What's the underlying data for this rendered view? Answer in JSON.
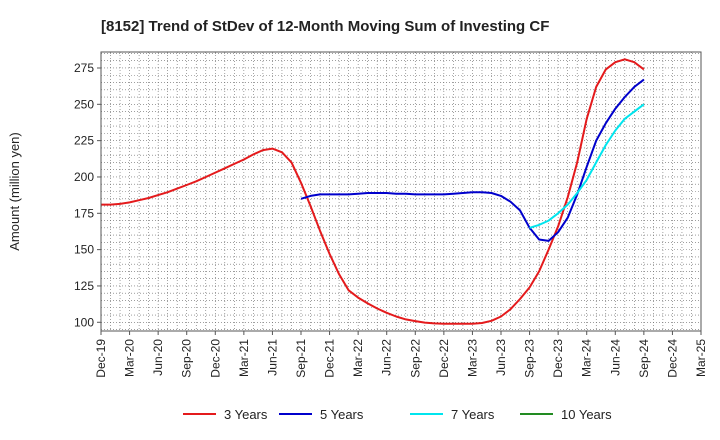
{
  "chart_data": {
    "type": "line",
    "title": "[8152]  Trend of StDev of 12-Month Moving Sum of Investing CF",
    "ylabel": "Amount (million yen)",
    "xlabel": "",
    "ylim": [
      94,
      286
    ],
    "yticks": [
      100,
      125,
      150,
      175,
      200,
      225,
      250,
      275
    ],
    "x_tick_labels": [
      "Dec-19",
      "Mar-20",
      "Jun-20",
      "Sep-20",
      "Dec-20",
      "Mar-21",
      "Jun-21",
      "Sep-21",
      "Dec-21",
      "Mar-22",
      "Jun-22",
      "Sep-22",
      "Dec-22",
      "Mar-23",
      "Jun-23",
      "Sep-23",
      "Dec-23",
      "Mar-24",
      "Jun-24",
      "Sep-24",
      "Dec-24",
      "Mar-25"
    ],
    "grid": true,
    "legend_position": "bottom",
    "series": [
      {
        "name": "3 Years",
        "color": "#e41a1c",
        "x": [
          "Dec-19",
          "Jan-20",
          "Feb-20",
          "Mar-20",
          "Apr-20",
          "May-20",
          "Jun-20",
          "Jul-20",
          "Aug-20",
          "Sep-20",
          "Oct-20",
          "Nov-20",
          "Dec-20",
          "Jan-21",
          "Feb-21",
          "Mar-21",
          "Apr-21",
          "May-21",
          "Jun-21",
          "Jul-21",
          "Aug-21",
          "Sep-21",
          "Oct-21",
          "Nov-21",
          "Dec-21",
          "Jan-22",
          "Feb-22",
          "Mar-22",
          "Apr-22",
          "May-22",
          "Jun-22",
          "Jul-22",
          "Aug-22",
          "Sep-22",
          "Oct-22",
          "Nov-22",
          "Dec-22",
          "Jan-23",
          "Feb-23",
          "Mar-23",
          "Apr-23",
          "May-23",
          "Jun-23",
          "Jul-23",
          "Aug-23",
          "Sep-23",
          "Oct-23",
          "Nov-23",
          "Dec-23",
          "Jan-24",
          "Feb-24",
          "Mar-24",
          "Apr-24",
          "May-24",
          "Jun-24",
          "Jul-24",
          "Aug-24",
          "Sep-24"
        ],
        "values": [
          181,
          181,
          181.5,
          182.5,
          184,
          185.5,
          187.5,
          189.5,
          192,
          194.5,
          197,
          200,
          203,
          206,
          209,
          212,
          215.5,
          218.5,
          219.5,
          217,
          210,
          196,
          180,
          163,
          147,
          133,
          122,
          117,
          113,
          109.5,
          106.5,
          104,
          102,
          100.8,
          99.8,
          99.2,
          99,
          99,
          99,
          99,
          99.5,
          101,
          104,
          109,
          116,
          124,
          135,
          150,
          166,
          186,
          210,
          240,
          262,
          274,
          279,
          281,
          279,
          274
        ]
      },
      {
        "name": "5 Years",
        "color": "#0000cc",
        "x": [
          "Sep-21",
          "Oct-21",
          "Nov-21",
          "Dec-21",
          "Jan-22",
          "Feb-22",
          "Mar-22",
          "Apr-22",
          "May-22",
          "Jun-22",
          "Jul-22",
          "Aug-22",
          "Sep-22",
          "Oct-22",
          "Nov-22",
          "Dec-22",
          "Jan-23",
          "Feb-23",
          "Mar-23",
          "Apr-23",
          "May-23",
          "Jun-23",
          "Jul-23",
          "Aug-23",
          "Sep-23",
          "Oct-23",
          "Nov-23",
          "Dec-23",
          "Jan-24",
          "Feb-24",
          "Mar-24",
          "Apr-24",
          "May-24",
          "Jun-24",
          "Jul-24",
          "Aug-24",
          "Sep-24"
        ],
        "values": [
          185,
          187,
          188,
          188,
          188,
          188,
          188.5,
          189,
          189,
          189,
          188.5,
          188.5,
          188,
          188,
          188,
          188,
          188.5,
          189,
          189.5,
          189.5,
          189,
          187,
          183,
          177,
          165,
          157,
          156,
          162,
          172,
          188,
          207,
          225,
          237,
          247,
          255,
          262,
          267
        ]
      },
      {
        "name": "7 Years",
        "color": "#00e5ee",
        "x": [
          "Sep-23",
          "Oct-23",
          "Nov-23",
          "Dec-23",
          "Jan-24",
          "Feb-24",
          "Mar-24",
          "Apr-24",
          "May-24",
          "Jun-24",
          "Jul-24",
          "Aug-24",
          "Sep-24"
        ],
        "values": [
          165,
          167,
          170,
          175,
          181,
          189,
          198,
          210,
          222,
          232,
          240,
          245,
          250
        ]
      },
      {
        "name": "10 Years",
        "color": "#228b22",
        "x": [],
        "values": []
      }
    ]
  }
}
